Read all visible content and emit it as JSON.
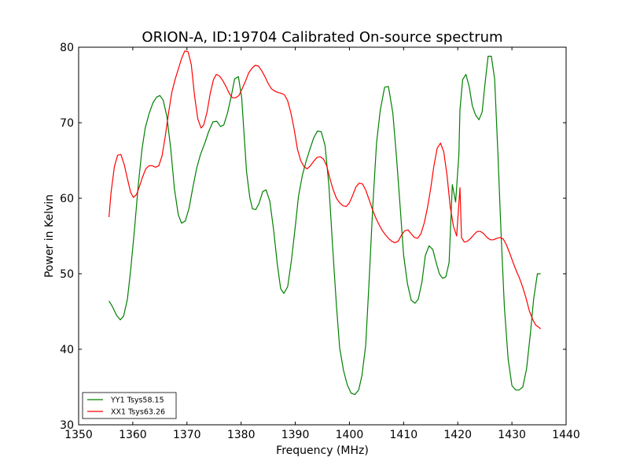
{
  "chart_data": {
    "type": "line",
    "title": "ORION-A, ID:19704 Calibrated On-source spectrum",
    "xlabel": "Frequency (MHz)",
    "ylabel": "Power in Kelvin",
    "xlim": [
      1350,
      1440
    ],
    "ylim": [
      30,
      80
    ],
    "xticks": [
      1350,
      1360,
      1370,
      1380,
      1390,
      1400,
      1410,
      1420,
      1430,
      1440
    ],
    "yticks": [
      30,
      40,
      50,
      60,
      70,
      80
    ],
    "grid": false,
    "legend": "lower-left",
    "series": [
      {
        "name": "YY1 Tsys58.15",
        "color": "#008000",
        "x": [
          1355.6,
          1356.2,
          1357.0,
          1357.7,
          1358.3,
          1359.0,
          1359.6,
          1360.3,
          1361.0,
          1361.7,
          1362.3,
          1363.0,
          1363.7,
          1364.4,
          1365.0,
          1365.6,
          1366.3,
          1367.0,
          1367.7,
          1368.4,
          1369.0,
          1369.7,
          1370.4,
          1371.1,
          1371.8,
          1372.5,
          1373.3,
          1374.0,
          1374.8,
          1375.5,
          1376.2,
          1376.8,
          1377.5,
          1378.2,
          1378.8,
          1379.5,
          1380.1,
          1380.5,
          1381.0,
          1381.6,
          1382.1,
          1382.7,
          1383.3,
          1384.0,
          1384.6,
          1385.3,
          1386.0,
          1386.7,
          1387.3,
          1387.9,
          1388.6,
          1389.3,
          1390.0,
          1390.6,
          1391.3,
          1392.0,
          1392.7,
          1393.4,
          1394.1,
          1394.8,
          1395.5,
          1396.2,
          1396.9,
          1397.6,
          1398.2,
          1398.9,
          1399.6,
          1400.3,
          1401.0,
          1401.7,
          1402.3,
          1403.0,
          1403.6,
          1404.3,
          1405.0,
          1405.7,
          1406.5,
          1407.2,
          1408.0,
          1408.7,
          1409.4,
          1410.0,
          1410.7,
          1411.4,
          1412.1,
          1412.7,
          1413.4,
          1414.0,
          1414.7,
          1415.4,
          1416.0,
          1416.6,
          1417.2,
          1417.8,
          1418.4,
          1419.0,
          1419.6,
          1420.2,
          1420.4,
          1420.9,
          1421.5,
          1422.1,
          1422.7,
          1423.3,
          1423.9,
          1424.5,
          1425.0,
          1425.6,
          1426.2,
          1426.8,
          1427.4,
          1428.0,
          1428.6,
          1429.3,
          1430.0,
          1430.7,
          1431.3,
          1432.0,
          1432.7,
          1433.4,
          1434.0,
          1434.7,
          1435.3
        ],
        "y": [
          46.4,
          45.7,
          44.5,
          43.9,
          44.4,
          46.6,
          50.4,
          55.8,
          61.7,
          66.5,
          69.3,
          71.2,
          72.6,
          73.4,
          73.6,
          73.0,
          70.8,
          66.6,
          61.2,
          57.8,
          56.7,
          57.0,
          58.7,
          61.5,
          64.0,
          65.8,
          67.3,
          68.8,
          70.1,
          70.2,
          69.5,
          69.7,
          71.3,
          73.6,
          75.8,
          76.1,
          73.3,
          69.0,
          63.5,
          60.1,
          58.6,
          58.5,
          59.3,
          60.9,
          61.1,
          59.6,
          55.8,
          51.2,
          48.0,
          47.4,
          48.3,
          51.8,
          56.3,
          60.3,
          63.0,
          64.9,
          66.5,
          68.0,
          68.9,
          68.8,
          67.0,
          61.7,
          53.5,
          45.8,
          40.2,
          37.2,
          35.3,
          34.2,
          34.0,
          34.6,
          36.5,
          40.5,
          48.5,
          58.9,
          67.3,
          71.7,
          74.7,
          74.8,
          71.3,
          65.3,
          58.5,
          52.5,
          48.7,
          46.5,
          46.1,
          46.6,
          49.0,
          52.4,
          53.7,
          53.2,
          51.5,
          50.0,
          49.4,
          49.6,
          51.5,
          61.8,
          59.5,
          65.7,
          71.7,
          75.7,
          76.4,
          74.8,
          72.2,
          71.0,
          70.4,
          71.4,
          75.0,
          78.8,
          78.8,
          75.8,
          66.1,
          55.3,
          45.6,
          38.7,
          35.2,
          34.6,
          34.6,
          35.0,
          37.4,
          42.0,
          46.6,
          50.0,
          50.0
        ],
        "label": "YY1 Tsys58.15"
      },
      {
        "name": "XX1 Tsys63.26",
        "color": "#ff0000",
        "x": [
          1355.6,
          1356.0,
          1356.6,
          1357.2,
          1357.8,
          1358.4,
          1359.0,
          1359.6,
          1360.1,
          1360.7,
          1361.2,
          1361.8,
          1362.4,
          1363.0,
          1363.6,
          1364.2,
          1364.8,
          1365.4,
          1366.0,
          1366.6,
          1367.2,
          1367.8,
          1368.4,
          1369.0,
          1369.6,
          1370.2,
          1370.8,
          1371.4,
          1372.0,
          1372.6,
          1373.1,
          1373.7,
          1374.3,
          1374.9,
          1375.4,
          1376.0,
          1376.6,
          1377.2,
          1377.8,
          1378.4,
          1379.0,
          1379.6,
          1380.2,
          1380.8,
          1381.4,
          1382.0,
          1382.6,
          1383.2,
          1383.8,
          1384.4,
          1385.0,
          1385.6,
          1386.2,
          1386.8,
          1387.4,
          1388.0,
          1388.6,
          1389.2,
          1389.8,
          1390.4,
          1391.0,
          1391.6,
          1392.2,
          1392.8,
          1393.4,
          1394.0,
          1394.6,
          1395.2,
          1395.8,
          1396.4,
          1397.0,
          1397.6,
          1398.2,
          1398.8,
          1399.4,
          1400.0,
          1400.6,
          1401.2,
          1401.8,
          1402.4,
          1403.0,
          1403.6,
          1404.2,
          1404.8,
          1405.4,
          1406.0,
          1406.6,
          1407.2,
          1407.8,
          1408.4,
          1409.0,
          1409.6,
          1410.2,
          1410.8,
          1411.4,
          1412.0,
          1412.6,
          1413.2,
          1413.8,
          1414.4,
          1415.0,
          1415.6,
          1416.2,
          1416.8,
          1417.4,
          1418.0,
          1418.6,
          1419.2,
          1419.8,
          1420.4,
          1420.7,
          1421.2,
          1421.8,
          1422.4,
          1423.0,
          1423.6,
          1424.2,
          1424.8,
          1425.4,
          1426.0,
          1426.6,
          1427.2,
          1427.8,
          1428.4,
          1429.0,
          1429.6,
          1430.2,
          1430.8,
          1431.4,
          1432.0,
          1432.6,
          1433.2,
          1433.8,
          1434.4,
          1435.0,
          1435.3
        ],
        "y": [
          57.5,
          60.8,
          64.2,
          65.7,
          65.8,
          64.5,
          62.6,
          60.8,
          60.1,
          60.5,
          61.5,
          62.8,
          63.9,
          64.3,
          64.3,
          64.1,
          64.3,
          65.6,
          68.2,
          71.3,
          74.0,
          75.7,
          77.1,
          78.5,
          79.5,
          79.4,
          77.7,
          73.6,
          70.5,
          69.3,
          69.7,
          71.4,
          73.9,
          75.7,
          76.4,
          76.2,
          75.6,
          74.8,
          73.9,
          73.3,
          73.3,
          73.6,
          74.5,
          75.5,
          76.6,
          77.2,
          77.6,
          77.5,
          76.9,
          76.1,
          75.2,
          74.5,
          74.2,
          74.0,
          73.9,
          73.7,
          72.9,
          71.3,
          69.1,
          66.5,
          65.0,
          64.2,
          63.9,
          64.3,
          64.9,
          65.4,
          65.5,
          65.2,
          64.3,
          62.6,
          61.1,
          60.0,
          59.4,
          59.0,
          58.9,
          59.4,
          60.4,
          61.5,
          62.0,
          61.9,
          61.1,
          59.9,
          58.6,
          57.5,
          56.6,
          55.8,
          55.2,
          54.7,
          54.3,
          54.1,
          54.3,
          55.1,
          55.7,
          55.8,
          55.3,
          54.8,
          54.7,
          55.3,
          56.7,
          58.7,
          61.3,
          64.3,
          66.6,
          67.3,
          66.2,
          63.2,
          58.9,
          56.3,
          55.0,
          61.4,
          54.8,
          54.2,
          54.3,
          54.7,
          55.2,
          55.6,
          55.6,
          55.3,
          54.8,
          54.5,
          54.5,
          54.7,
          54.8,
          54.6,
          53.8,
          52.7,
          51.5,
          50.4,
          49.4,
          48.2,
          46.8,
          45.1,
          44.0,
          43.2,
          42.9,
          42.7
        ],
        "label": "XX1 Tsys63.26"
      }
    ]
  }
}
